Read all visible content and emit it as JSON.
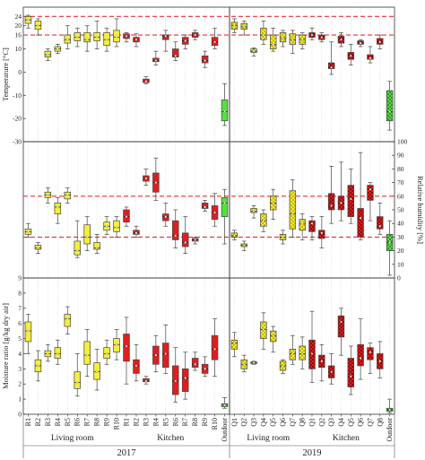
{
  "colors": {
    "yellow": "#f4ef3a",
    "red": "#e01e1e",
    "green": "#55e040",
    "refline": "#e8303a",
    "frame": "#333333"
  },
  "chart_data": {
    "type": "box",
    "panels_x": [
      {
        "year": "2017",
        "categories": [
          "R1",
          "R2",
          "R3",
          "R4",
          "R5",
          "R6",
          "R7",
          "R8",
          "R9",
          "R10",
          "R1",
          "R2",
          "R3",
          "R4",
          "R5",
          "R6",
          "R7",
          "R8",
          "R9",
          "R10",
          "Outdoor"
        ],
        "groups": [
          {
            "label": "Living room",
            "from": 0,
            "to": 9
          },
          {
            "label": "Kitchen",
            "from": 10,
            "to": 19
          }
        ],
        "fill": [
          "yellow",
          "yellow",
          "yellow",
          "yellow",
          "yellow",
          "yellow",
          "yellow",
          "yellow",
          "yellow",
          "yellow",
          "red",
          "red",
          "red",
          "red",
          "red",
          "red",
          "red",
          "red",
          "red",
          "red",
          "green"
        ],
        "pattern": "solid"
      },
      {
        "year": "2019",
        "categories": [
          "Q1",
          "Q2",
          "Q3",
          "Q4",
          "Q5",
          "Q6",
          "Q7",
          "Q8",
          "Q1",
          "Q2",
          "Q3",
          "Q4",
          "Q5",
          "Q6",
          "Q7",
          "Q8",
          "Outdoor"
        ],
        "groups": [
          {
            "label": "Living room",
            "from": 0,
            "to": 7
          },
          {
            "label": "Kitchen",
            "from": 8,
            "to": 15
          }
        ],
        "fill": [
          "yellow",
          "yellow",
          "yellow",
          "yellow",
          "yellow",
          "yellow",
          "yellow",
          "yellow",
          "red",
          "red",
          "red",
          "red",
          "red",
          "red",
          "red",
          "red",
          "green"
        ],
        "pattern": "checker"
      }
    ],
    "rows": [
      {
        "ylabel": "Temperature [°C]",
        "axis_side": "left",
        "ylim": [
          -30,
          28
        ],
        "ticks": [
          -30,
          -20,
          -10,
          0,
          10,
          16,
          20,
          24
        ],
        "reference_lines": [
          16,
          24
        ],
        "boxes": [
          [
            [
              19,
              21,
              22.5,
              24,
              24.5
            ],
            [
              16,
              18.5,
              20,
              22,
              23
            ],
            [
              5,
              6.5,
              7.5,
              9,
              10
            ],
            [
              8,
              9,
              10,
              11,
              12
            ],
            [
              10,
              12.5,
              14,
              16,
              20
            ],
            [
              11,
              13.5,
              15,
              17,
              19
            ],
            [
              9,
              13,
              14,
              17,
              20
            ],
            [
              10,
              13.5,
              15,
              17,
              22
            ],
            [
              9,
              11.5,
              14,
              17,
              19
            ],
            [
              11,
              13,
              15,
              18,
              23
            ],
            [
              13,
              14.5,
              15.5,
              16.5,
              17
            ],
            [
              11,
              13,
              14,
              15,
              16.5
            ],
            [
              -5,
              -4.5,
              -4,
              -3,
              -2
            ],
            [
              3,
              4.5,
              5,
              6,
              9
            ],
            [
              9,
              14,
              15.5,
              16,
              18
            ],
            [
              5,
              6.5,
              7,
              10,
              13
            ],
            [
              10,
              12,
              13.5,
              15,
              16
            ],
            [
              14,
              15,
              16,
              17,
              18
            ],
            [
              2,
              4,
              5,
              7,
              9
            ],
            [
              10,
              11.5,
              13,
              15,
              19
            ],
            [
              -23,
              -21,
              -17,
              -12,
              -5
            ]
          ],
          [
            [
              17,
              18.5,
              20,
              21.5,
              23
            ],
            [
              16,
              18.5,
              19.5,
              21,
              22
            ],
            [
              7,
              8.5,
              9,
              10,
              10.5
            ],
            [
              12,
              14,
              16,
              19,
              22
            ],
            [
              9,
              10,
              12,
              16,
              19
            ],
            [
              11,
              13,
              14.5,
              17,
              18
            ],
            [
              8,
              12,
              14,
              16.5,
              18
            ],
            [
              10,
              12,
              14,
              16,
              17
            ],
            [
              14,
              15,
              16,
              17,
              19
            ],
            [
              13,
              14,
              15,
              16,
              17
            ],
            [
              -1,
              1.5,
              2,
              4,
              13
            ],
            [
              11,
              12.5,
              14,
              15.5,
              17
            ],
            [
              3,
              5.5,
              7,
              8.5,
              12
            ],
            [
              11,
              12,
              12.5,
              13.5,
              14
            ],
            [
              4,
              5.5,
              6,
              7.5,
              11
            ],
            [
              10,
              12,
              13,
              14.5,
              16
            ],
            [
              -25,
              -21,
              -17,
              -8,
              -4
            ]
          ]
        ]
      },
      {
        "ylabel": "Relative humidity [%]",
        "axis_side": "right",
        "ylim": [
          0,
          100
        ],
        "ticks": [
          0,
          10,
          20,
          30,
          40,
          50,
          60,
          70,
          80,
          90,
          100
        ],
        "reference_lines": [
          30,
          60
        ],
        "boxes": [
          [
            [
              30,
              32,
              34,
              36,
              40
            ],
            [
              18,
              21,
              22,
              24,
              26
            ],
            [
              55,
              59,
              61,
              63,
              66
            ],
            [
              40,
              47,
              52,
              55,
              59
            ],
            [
              55,
              58,
              61,
              63,
              66
            ],
            [
              15,
              17,
              20,
              27,
              42
            ],
            [
              20,
              25,
              30,
              39,
              45
            ],
            [
              18,
              21,
              22,
              26,
              32
            ],
            [
              32,
              35,
              38,
              41,
              45
            ],
            [
              30,
              34,
              37,
              42,
              45
            ],
            [
              38,
              41,
              45,
              50,
              52
            ],
            [
              30,
              32,
              33,
              35,
              38
            ],
            [
              68,
              71,
              73,
              75,
              80
            ],
            [
              57,
              63,
              70,
              77,
              88
            ],
            [
              38,
              42,
              45,
              47,
              55
            ],
            [
              22,
              28,
              31,
              42,
              50
            ],
            [
              18,
              23,
              26,
              33,
              45
            ],
            [
              25,
              27,
              28,
              29,
              30
            ],
            [
              49,
              51,
              52,
              55,
              57
            ],
            [
              38,
              43,
              48,
              53,
              62
            ],
            [
              25,
              45,
              55,
              59,
              65
            ]
          ],
          [
            [
              28,
              30,
              31,
              33,
              35
            ],
            [
              20,
              23,
              24,
              25,
              27
            ],
            [
              44,
              48,
              49,
              51,
              53
            ],
            [
              34,
              38,
              42,
              47,
              50
            ],
            [
              43,
              50,
              55,
              60,
              65
            ],
            [
              25,
              28,
              30,
              32,
              35
            ],
            [
              30,
              36,
              47,
              64,
              72
            ],
            [
              28,
              35,
              40,
              43,
              47
            ],
            [
              28,
              34,
              40,
              42,
              45
            ],
            [
              22,
              29,
              33,
              35,
              45
            ],
            [
              40,
              50,
              53,
              62,
              82
            ],
            [
              42,
              50,
              55,
              60,
              85
            ],
            [
              40,
              45,
              58,
              68,
              80
            ],
            [
              28,
              30,
              44,
              51,
              92
            ],
            [
              42,
              57,
              65,
              68,
              70
            ],
            [
              32,
              36,
              38,
              45,
              55
            ],
            [
              2,
              20,
              26,
              32,
              42
            ]
          ]
        ]
      },
      {
        "ylabel": "Moisture ratio [g/kg dry air]",
        "axis_side": "left",
        "ylim": [
          0,
          9
        ],
        "ticks": [
          0,
          1,
          2,
          3,
          4,
          5,
          6,
          7,
          8,
          9
        ],
        "reference_lines": [],
        "boxes": [
          [
            [
              4,
              4.8,
              5.5,
              6.1,
              6.6
            ],
            [
              2.2,
              2.8,
              3.2,
              3.6,
              4.2
            ],
            [
              3.5,
              3.8,
              4,
              4.2,
              4.6
            ],
            [
              3.3,
              3.7,
              4,
              4.4,
              4.9
            ],
            [
              5.3,
              5.8,
              6.3,
              6.6,
              7.1
            ],
            [
              1.2,
              1.7,
              2.1,
              2.8,
              4
            ],
            [
              2.5,
              3.3,
              3.9,
              4.8,
              5.6
            ],
            [
              1.6,
              2.3,
              2.8,
              3.4,
              4.3
            ],
            [
              3.3,
              3.7,
              4,
              4.4,
              4.9
            ],
            [
              3.6,
              4.1,
              4.6,
              5,
              5.6
            ],
            [
              2,
              3.5,
              4.5,
              5.3,
              6.4
            ],
            [
              2.2,
              2.7,
              3.2,
              3.6,
              4.6
            ],
            [
              2,
              2.15,
              2.2,
              2.35,
              2.5
            ],
            [
              2.8,
              3.3,
              3.9,
              4.5,
              5.2
            ],
            [
              2.7,
              3.1,
              4,
              4.7,
              5.9
            ],
            [
              0.8,
              1.3,
              2.2,
              3.2,
              4.4
            ],
            [
              1,
              1.5,
              2.4,
              3,
              4.1
            ],
            [
              2.9,
              3.1,
              3.3,
              3.7,
              4.1
            ],
            [
              2.5,
              2.7,
              3,
              3.3,
              3.8
            ],
            [
              2.5,
              3.6,
              4.3,
              5.2,
              6.3
            ],
            [
              0.4,
              0.5,
              0.6,
              0.7,
              1.1
            ]
          ],
          [
            [
              3.8,
              4.3,
              4.7,
              4.9,
              5.4
            ],
            [
              2.8,
              3,
              3.3,
              3.6,
              3.9
            ],
            [
              3.3,
              3.35,
              3.4,
              3.45,
              3.5
            ],
            [
              4.3,
              5,
              5.6,
              6.1,
              6.7
            ],
            [
              4.1,
              4.8,
              5.2,
              5.5,
              5.8
            ],
            [
              2.7,
              2.9,
              3.2,
              3.5,
              3.6
            ],
            [
              3.3,
              3.6,
              4,
              4.3,
              5.2
            ],
            [
              3,
              3.6,
              4,
              4.5,
              5.1
            ],
            [
              2.1,
              3,
              4,
              4.9,
              6.8
            ],
            [
              2.2,
              3.1,
              3.5,
              3.9,
              4.6
            ],
            [
              2,
              2.4,
              2.8,
              3.2,
              4
            ],
            [
              3.9,
              5.1,
              6.1,
              6.5,
              7
            ],
            [
              1.3,
              1.8,
              2.5,
              3.7,
              4.5
            ],
            [
              2.3,
              3.2,
              3.7,
              4.6,
              6.3
            ],
            [
              2.7,
              3.6,
              4.1,
              4.4,
              4.7
            ],
            [
              2.4,
              3,
              3.5,
              4,
              4.8
            ],
            [
              0.1,
              0.2,
              0.3,
              0.4,
              1
            ]
          ]
        ]
      }
    ]
  }
}
